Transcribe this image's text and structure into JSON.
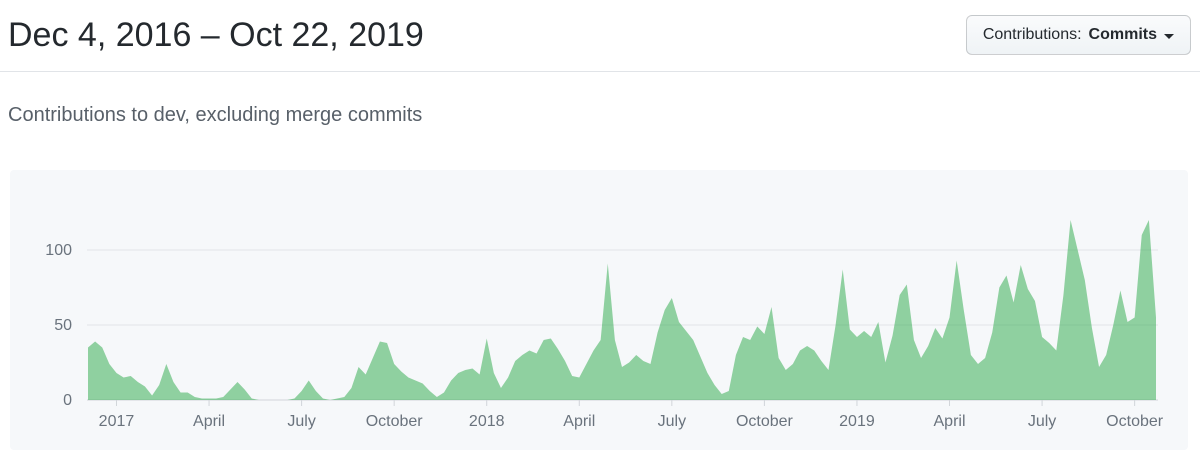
{
  "header": {
    "title": "Dec 4, 2016 – Oct 22, 2019",
    "filter_button": {
      "label_prefix": "Contributions:",
      "selected": "Commits"
    }
  },
  "subtitle": "Contributions to dev, excluding merge commits",
  "chart_data": {
    "type": "area",
    "title": "Contributions to dev, excluding merge commits",
    "x_start_label": "Dec 4, 2016",
    "x_end_label": "Oct 22, 2019",
    "x_interval": "week",
    "ylabel": "",
    "xlabel": "",
    "grid": true,
    "legend": "none",
    "y_ticks": [
      0,
      50,
      100
    ],
    "ylim": [
      0,
      136
    ],
    "x_ticks": [
      {
        "index": 4,
        "label": "2017"
      },
      {
        "index": 17,
        "label": "April"
      },
      {
        "index": 30,
        "label": "July"
      },
      {
        "index": 43,
        "label": "October"
      },
      {
        "index": 56,
        "label": "2018"
      },
      {
        "index": 69,
        "label": "April"
      },
      {
        "index": 82,
        "label": "July"
      },
      {
        "index": 95,
        "label": "October"
      },
      {
        "index": 108,
        "label": "2019"
      },
      {
        "index": 121,
        "label": "April"
      },
      {
        "index": 134,
        "label": "July"
      },
      {
        "index": 147,
        "label": "October"
      }
    ],
    "values": [
      35,
      39,
      35,
      24,
      18,
      15,
      16,
      12,
      9,
      3,
      10,
      24,
      12,
      5,
      5,
      2,
      1,
      1,
      1,
      2,
      7,
      12,
      7,
      1,
      0,
      0,
      0,
      0,
      0,
      1,
      6,
      13,
      6,
      1,
      0,
      1,
      2,
      8,
      22,
      17,
      28,
      39,
      38,
      24,
      19,
      15,
      13,
      11,
      6,
      2,
      5,
      13,
      18,
      20,
      21,
      17,
      41,
      18,
      8,
      15,
      26,
      30,
      33,
      31,
      40,
      41,
      34,
      26,
      16,
      15,
      24,
      33,
      40,
      91,
      40,
      22,
      25,
      30,
      26,
      24,
      45,
      60,
      68,
      52,
      46,
      40,
      29,
      18,
      10,
      4,
      6,
      30,
      42,
      40,
      49,
      44,
      62,
      28,
      20,
      24,
      33,
      36,
      33,
      26,
      20,
      50,
      87,
      47,
      42,
      46,
      42,
      52,
      25,
      43,
      70,
      77,
      40,
      28,
      36,
      48,
      41,
      55,
      93,
      60,
      30,
      24,
      28,
      45,
      75,
      83,
      65,
      90,
      74,
      66,
      42,
      38,
      33,
      70,
      120,
      100,
      80,
      48,
      22,
      30,
      50,
      73,
      52,
      55,
      110,
      120,
      55
    ],
    "colors": {
      "area_fill": "rgba(40,167,69,0.5)",
      "accent_green": "#28a745",
      "gridline": "#e1e4e8",
      "baseline": "#d1d5da",
      "axis_text": "#6a737d"
    }
  }
}
